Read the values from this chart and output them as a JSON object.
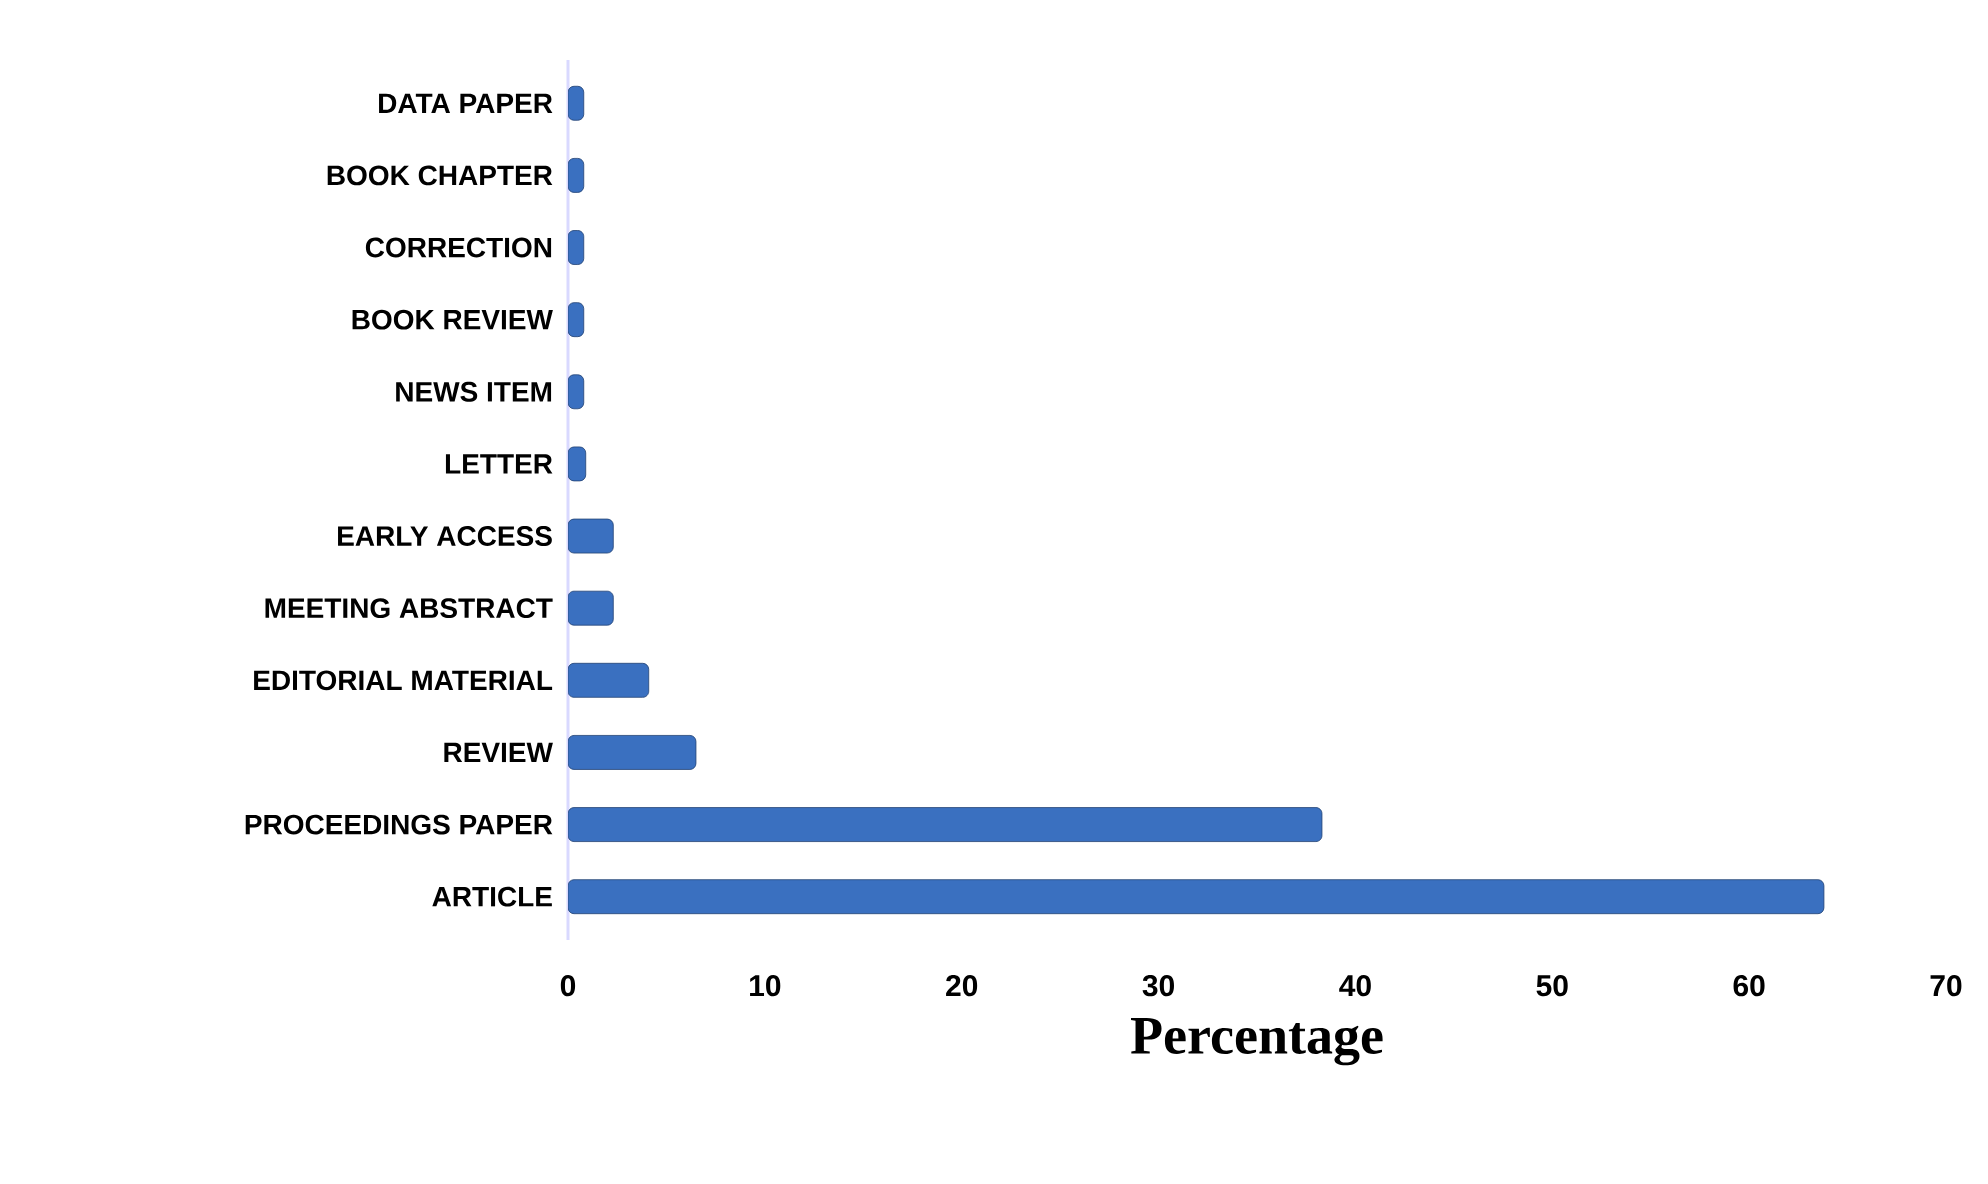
{
  "chart_data": {
    "type": "bar",
    "orientation": "horizontal",
    "xlabel": "Percentage",
    "categories": [
      "DATA PAPER",
      "BOOK CHAPTER",
      "CORRECTION",
      "BOOK REVIEW",
      "NEWS ITEM",
      "LETTER",
      "EARLY ACCESS",
      "MEETING ABSTRACT",
      "EDITORIAL MATERIAL",
      "REVIEW",
      "PROCEEDINGS PAPER",
      "ARTICLE"
    ],
    "values": [
      0.8,
      0.8,
      0.8,
      0.8,
      0.8,
      0.9,
      2.3,
      2.3,
      4.1,
      6.5,
      38.3,
      63.8
    ],
    "color": "#3a70c0",
    "xlim": [
      0,
      70
    ],
    "xticks": [
      0,
      10,
      20,
      30,
      40,
      50,
      60,
      70
    ],
    "grid": false
  }
}
